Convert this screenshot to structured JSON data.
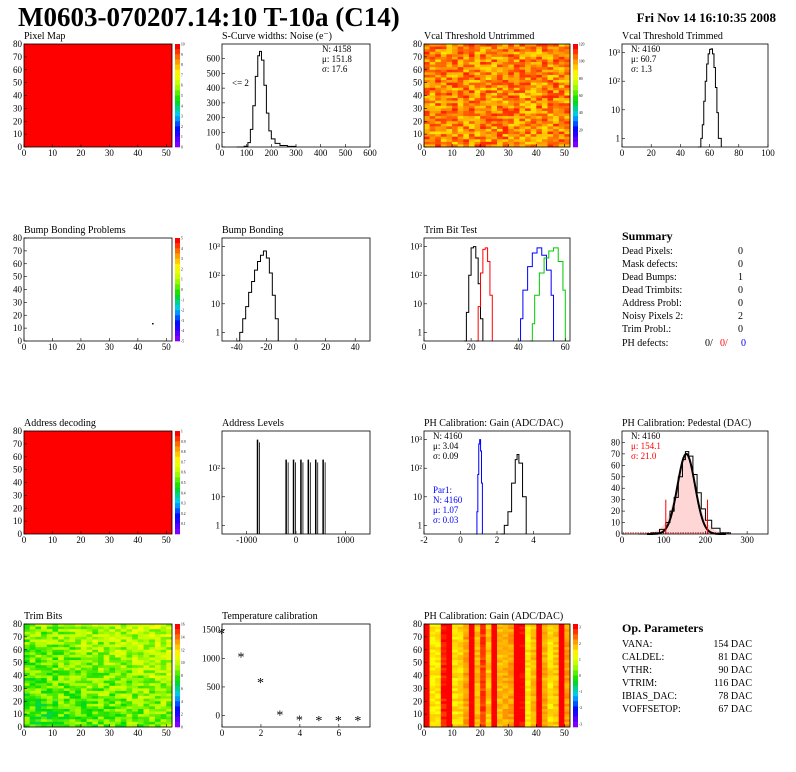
{
  "header": {
    "title": "M0603-070207.14:10 T-10a (C14)",
    "datetime": "Fri Nov 14 16:10:35 2008"
  },
  "palette": {
    "red": "#ff0000",
    "blue": "#0000ff",
    "green": "#00cc00",
    "black": "#000000",
    "darkred": "#990000"
  },
  "summary": {
    "title": "Summary",
    "rows": [
      {
        "label": "Dead Pixels:",
        "value": "0"
      },
      {
        "label": "Mask defects:",
        "value": "0"
      },
      {
        "label": "Dead Bumps:",
        "value": "1"
      },
      {
        "label": "Dead Trimbits:",
        "value": "0"
      },
      {
        "label": "Address Probl:",
        "value": "0"
      },
      {
        "label": "Noisy Pixels 2:",
        "value": "2"
      },
      {
        "label": "Trim Probl.:",
        "value": "0"
      }
    ],
    "ph_defects": {
      "label": "PH defects:",
      "v1": "0/",
      "v2": "0/",
      "v3": "0"
    }
  },
  "op_params": {
    "title": "Op. Parameters",
    "rows": [
      {
        "label": "VANA:",
        "value": "154 DAC"
      },
      {
        "label": "CALDEL:",
        "value": "81 DAC"
      },
      {
        "label": "VTHR:",
        "value": "90 DAC"
      },
      {
        "label": "VTRIM:",
        "value": "116 DAC"
      },
      {
        "label": "IBIAS_DAC:",
        "value": "78 DAC"
      },
      {
        "label": "VOFFSETOP:",
        "value": "67 DAC"
      }
    ]
  },
  "chart_data": [
    {
      "id": "pixel-map",
      "type": "heatmap",
      "title": "Pixel Map",
      "xlim": [
        0,
        52
      ],
      "ylim": [
        0,
        80
      ],
      "xticks": [
        0,
        10,
        20,
        30,
        40,
        50
      ],
      "yticks": [
        0,
        10,
        20,
        30,
        40,
        50,
        60,
        70,
        80
      ],
      "pattern": "uniform",
      "zlim": [
        0,
        10
      ],
      "palette_ticks": [
        0,
        1,
        2,
        3,
        4,
        5,
        6,
        7,
        8,
        9,
        10
      ]
    },
    {
      "id": "scurve",
      "type": "histogram",
      "title": "S-Curve widths: Noise (e⁻)",
      "xlim": [
        0,
        600
      ],
      "ylim": [
        0,
        700
      ],
      "xticks": [
        0,
        100,
        200,
        300,
        400,
        500,
        600
      ],
      "yticks": [
        0,
        100,
        200,
        300,
        400,
        500,
        600
      ],
      "bins": [
        [
          60,
          0
        ],
        [
          90,
          5
        ],
        [
          105,
          30
        ],
        [
          115,
          120
        ],
        [
          125,
          280
        ],
        [
          135,
          480
        ],
        [
          145,
          620
        ],
        [
          152,
          650
        ],
        [
          160,
          590
        ],
        [
          170,
          420
        ],
        [
          180,
          230
        ],
        [
          190,
          110
        ],
        [
          200,
          55
        ],
        [
          215,
          25
        ],
        [
          235,
          10
        ],
        [
          265,
          4
        ],
        [
          300,
          0
        ]
      ],
      "annotation": "<= 2",
      "stats": {
        "N": "N: 4158",
        "mu": "μ: 151.8",
        "sigma": "σ: 17.6"
      }
    },
    {
      "id": "vcal-untrimmed",
      "type": "heatmap",
      "title": "Vcal Threshold Untrimmed",
      "xlim": [
        0,
        52
      ],
      "ylim": [
        0,
        80
      ],
      "xticks": [
        0,
        10,
        20,
        30,
        40,
        50
      ],
      "yticks": [
        0,
        10,
        20,
        30,
        40,
        50,
        60,
        70,
        80
      ],
      "pattern": "noise-orange",
      "zlim": [
        0,
        120
      ],
      "palette_ticks": [
        20,
        40,
        60,
        80,
        100,
        120
      ]
    },
    {
      "id": "vcal-trimmed",
      "type": "histogram",
      "title": "Vcal Threshold Trimmed",
      "log": true,
      "xlim": [
        0,
        100
      ],
      "ylim": [
        0.5,
        2000
      ],
      "xticks": [
        0,
        20,
        40,
        60,
        80,
        100
      ],
      "yticks": [
        1,
        10,
        100,
        1000
      ],
      "bins": [
        [
          52,
          0.5
        ],
        [
          54,
          1
        ],
        [
          55,
          3
        ],
        [
          56,
          20
        ],
        [
          57,
          100
        ],
        [
          58,
          400
        ],
        [
          59,
          900
        ],
        [
          60,
          1300
        ],
        [
          61,
          1350
        ],
        [
          62,
          900
        ],
        [
          63,
          300
        ],
        [
          64,
          60
        ],
        [
          65,
          8
        ],
        [
          66,
          1
        ],
        [
          67,
          1
        ],
        [
          68,
          0.5
        ]
      ],
      "stats": {
        "N": "N: 4160",
        "mu": "μ: 60.7",
        "sigma": "σ:  1.3"
      }
    },
    {
      "id": "bump-problems",
      "type": "heatmap",
      "title": "Bump Bonding Problems",
      "xlim": [
        0,
        52
      ],
      "ylim": [
        0,
        80
      ],
      "xticks": [
        0,
        10,
        20,
        30,
        40,
        50
      ],
      "yticks": [
        0,
        10,
        20,
        30,
        40,
        50,
        60,
        70,
        80
      ],
      "pattern": "empty",
      "zlim": [
        -5,
        5
      ],
      "palette_ticks": [
        -5,
        -4,
        -3,
        -2,
        -1,
        0,
        1,
        2,
        3,
        4,
        5
      ],
      "points": [
        [
          45,
          14
        ]
      ]
    },
    {
      "id": "bump-bonding",
      "type": "histogram",
      "title": "Bump Bonding",
      "log": true,
      "xlim": [
        -50,
        50
      ],
      "ylim": [
        0.5,
        2000
      ],
      "xticks": [
        -40,
        -20,
        0,
        20,
        40
      ],
      "yticks": [
        1,
        10,
        100,
        1000
      ],
      "bins": [
        [
          -40,
          0.5
        ],
        [
          -38,
          1
        ],
        [
          -36,
          3
        ],
        [
          -34,
          8
        ],
        [
          -32,
          25
        ],
        [
          -30,
          60
        ],
        [
          -28,
          150
        ],
        [
          -26,
          300
        ],
        [
          -24,
          500
        ],
        [
          -22,
          700
        ],
        [
          -20,
          400
        ],
        [
          -18,
          120
        ],
        [
          -16,
          20
        ],
        [
          -14,
          3
        ],
        [
          -12,
          0.5
        ]
      ]
    },
    {
      "id": "trim-bit-test",
      "type": "histogram",
      "title": "Trim Bit Test",
      "log": true,
      "xlim": [
        0,
        62
      ],
      "ylim": [
        0.5,
        2000
      ],
      "xticks": [
        0,
        20,
        40,
        60
      ],
      "yticks": [
        1,
        10,
        100,
        1000
      ],
      "series": [
        {
          "color": "#000000",
          "bins": [
            [
              17,
              0.5
            ],
            [
              18,
              5
            ],
            [
              19,
              100
            ],
            [
              20,
              900
            ],
            [
              21,
              1000
            ],
            [
              22,
              400
            ],
            [
              23,
              50
            ],
            [
              24,
              3
            ],
            [
              25,
              0.5
            ]
          ]
        },
        {
          "color": "#ff0000",
          "bins": [
            [
              22,
              0.5
            ],
            [
              23,
              8
            ],
            [
              24,
              120
            ],
            [
              25,
              800
            ],
            [
              26,
              900
            ],
            [
              27,
              300
            ],
            [
              28,
              20
            ],
            [
              29,
              0.5
            ]
          ]
        },
        {
          "color": "#0000ff",
          "bins": [
            [
              40,
              0.5
            ],
            [
              41,
              3
            ],
            [
              42,
              30
            ],
            [
              44,
              200
            ],
            [
              46,
              600
            ],
            [
              48,
              900
            ],
            [
              50,
              500
            ],
            [
              52,
              150
            ],
            [
              54,
              20
            ],
            [
              55,
              0.5
            ]
          ]
        },
        {
          "color": "#00cc00",
          "bins": [
            [
              45,
              0.5
            ],
            [
              46,
              2
            ],
            [
              47,
              20
            ],
            [
              49,
              120
            ],
            [
              51,
              400
            ],
            [
              53,
              700
            ],
            [
              55,
              900
            ],
            [
              57,
              300
            ],
            [
              59,
              30
            ],
            [
              60,
              0.5
            ]
          ]
        }
      ]
    },
    {
      "id": "address-decoding",
      "type": "heatmap",
      "title": "Address decoding",
      "xlim": [
        0,
        52
      ],
      "ylim": [
        0,
        80
      ],
      "xticks": [
        0,
        10,
        20,
        30,
        40,
        50
      ],
      "yticks": [
        0,
        10,
        20,
        30,
        40,
        50,
        60,
        70,
        80
      ],
      "pattern": "uniform",
      "zlim": [
        0,
        1
      ],
      "palette_ticks": [
        0.1,
        0.2,
        0.3,
        0.4,
        0.5,
        0.6,
        0.7,
        0.8,
        0.9,
        1
      ]
    },
    {
      "id": "address-levels",
      "type": "spikes",
      "title": "Address Levels",
      "log": true,
      "xlim": [
        -1500,
        1500
      ],
      "ylim": [
        0.5,
        2000
      ],
      "xticks": [
        -1000,
        0,
        1000
      ],
      "yticks": [
        1,
        10,
        100
      ],
      "spikes": [
        [
          -780,
          1000
        ],
        [
          -200,
          200
        ],
        [
          -50,
          200
        ],
        [
          100,
          200
        ],
        [
          250,
          200
        ],
        [
          400,
          200
        ],
        [
          550,
          200
        ]
      ]
    },
    {
      "id": "ph-gain",
      "type": "histogram",
      "title": "PH Calibration: Gain (ADC/DAC)",
      "log": true,
      "xlim": [
        -2,
        6
      ],
      "ylim": [
        0.5,
        2000
      ],
      "xticks": [
        -2,
        0,
        2,
        4
      ],
      "yticks": [
        1,
        10,
        100,
        1000
      ],
      "series": [
        {
          "color": "#000000",
          "bins": [
            [
              2.2,
              0.5
            ],
            [
              2.4,
              1
            ],
            [
              2.6,
              3
            ],
            [
              2.8,
              30
            ],
            [
              3.0,
              200
            ],
            [
              3.1,
              300
            ],
            [
              3.2,
              150
            ],
            [
              3.4,
              10
            ],
            [
              3.6,
              0.5
            ]
          ]
        },
        {
          "color": "#0000ff",
          "bins": [
            [
              0.85,
              0.5
            ],
            [
              0.9,
              3
            ],
            [
              0.95,
              60
            ],
            [
              1.0,
              700
            ],
            [
              1.05,
              1000
            ],
            [
              1.1,
              400
            ],
            [
              1.15,
              30
            ],
            [
              1.2,
              0.5
            ]
          ]
        }
      ],
      "stats": {
        "N": "N: 4160",
        "mu": "μ: 3.04",
        "sigma": "σ: 0.09"
      },
      "stats2": {
        "label": "Par1:",
        "N": "N: 4160",
        "mu": "μ: 1.07",
        "sigma": "σ: 0.03"
      }
    },
    {
      "id": "ph-pedestal",
      "type": "histogram",
      "title": "PH Calibration: Pedestal (DAC)",
      "xlim": [
        0,
        350
      ],
      "ylim": [
        0,
        90
      ],
      "xticks": [
        0,
        100,
        200,
        300
      ],
      "yticks": [
        0,
        10,
        20,
        30,
        40,
        50,
        60,
        70,
        80
      ],
      "bins": [
        [
          40,
          0
        ],
        [
          70,
          1
        ],
        [
          90,
          4
        ],
        [
          105,
          10
        ],
        [
          115,
          20
        ],
        [
          125,
          32
        ],
        [
          135,
          50
        ],
        [
          145,
          65
        ],
        [
          152,
          72
        ],
        [
          160,
          68
        ],
        [
          170,
          52
        ],
        [
          180,
          36
        ],
        [
          190,
          22
        ],
        [
          200,
          12
        ],
        [
          215,
          5
        ],
        [
          235,
          1
        ],
        [
          260,
          0
        ]
      ],
      "gauss": {
        "mu": 154.1,
        "sigma": 21.0,
        "amp": 70
      },
      "markers": [
        105,
        205
      ],
      "stats": {
        "N": "N: 4160",
        "mu": "μ: 154.1",
        "sigma": "σ: 21.0"
      }
    },
    {
      "id": "trim-bits",
      "type": "heatmap",
      "title": "Trim Bits",
      "xlim": [
        0,
        52
      ],
      "ylim": [
        0,
        80
      ],
      "xticks": [
        0,
        10,
        20,
        30,
        40,
        50
      ],
      "yticks": [
        0,
        10,
        20,
        30,
        40,
        50,
        60,
        70,
        80
      ],
      "pattern": "noise-green",
      "zlim": [
        0,
        16
      ],
      "palette_ticks": [
        0,
        2,
        4,
        6,
        8,
        10,
        12,
        14,
        16
      ]
    },
    {
      "id": "temp-cal",
      "type": "scatter",
      "title": "Temperature calibration",
      "xlim": [
        0,
        7.6
      ],
      "ylim": [
        -200,
        1600
      ],
      "xticks": [
        0,
        2,
        4,
        6
      ],
      "yticks": [
        0,
        500,
        1000,
        1500
      ],
      "points": [
        [
          0,
          1460
        ],
        [
          1,
          1050
        ],
        [
          2,
          600
        ],
        [
          3,
          40
        ],
        [
          4,
          -50
        ],
        [
          5,
          -60
        ],
        [
          6,
          -60
        ],
        [
          7,
          -60
        ]
      ]
    },
    {
      "id": "ph-gain-map",
      "type": "heatmap",
      "title": "PH Calibration: Gain (ADC/DAC)",
      "xlim": [
        0,
        52
      ],
      "ylim": [
        0,
        80
      ],
      "xticks": [
        0,
        10,
        20,
        30,
        40,
        50
      ],
      "yticks": [
        0,
        10,
        20,
        30,
        40,
        50,
        60,
        70,
        80
      ],
      "pattern": "columns",
      "zlim": [
        -3.2,
        3.2
      ],
      "palette_ticks": [
        -3,
        -2,
        -1,
        0,
        1,
        2,
        3
      ]
    }
  ]
}
